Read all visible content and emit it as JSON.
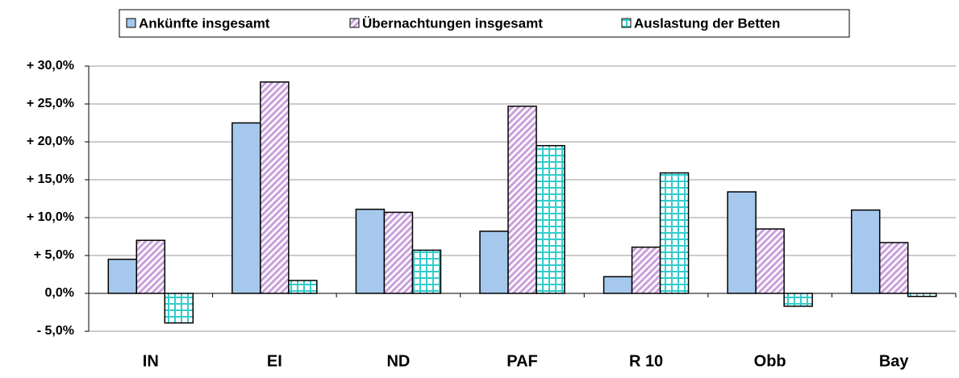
{
  "chart_data": {
    "type": "bar",
    "categories": [
      "IN",
      "EI",
      "ND",
      "PAF",
      "R 10",
      "Obb",
      "Bay"
    ],
    "series": [
      {
        "name": "Ankünfte insgesamt",
        "color": "#a6c8ec",
        "pattern": "solid",
        "values": [
          4.5,
          22.5,
          11.1,
          8.2,
          2.2,
          13.4,
          11.0
        ]
      },
      {
        "name": "Übernachtungen insgesamt",
        "color": "#c9a0dc",
        "pattern": "diagonal",
        "values": [
          7.0,
          27.9,
          10.7,
          24.7,
          6.1,
          8.5,
          6.7
        ]
      },
      {
        "name": "Auslastung der Betten",
        "color": "#33cccc",
        "pattern": "grid",
        "values": [
          -3.9,
          1.7,
          5.7,
          19.5,
          15.9,
          -1.7,
          -0.4
        ]
      }
    ],
    "ylim": [
      -5,
      30
    ],
    "yticks": [
      {
        "value": -5,
        "label": "- 5,0%"
      },
      {
        "value": 0,
        "label": "0,0%"
      },
      {
        "value": 5,
        "label": "+ 5,0%"
      },
      {
        "value": 10,
        "label": "+ 10,0%"
      },
      {
        "value": 15,
        "label": "+ 15,0%"
      },
      {
        "value": 20,
        "label": "+ 20,0%"
      },
      {
        "value": 25,
        "label": "+ 25,0%"
      },
      {
        "value": 30,
        "label": "+ 30,0%"
      }
    ],
    "grid": true,
    "legend": "top"
  }
}
